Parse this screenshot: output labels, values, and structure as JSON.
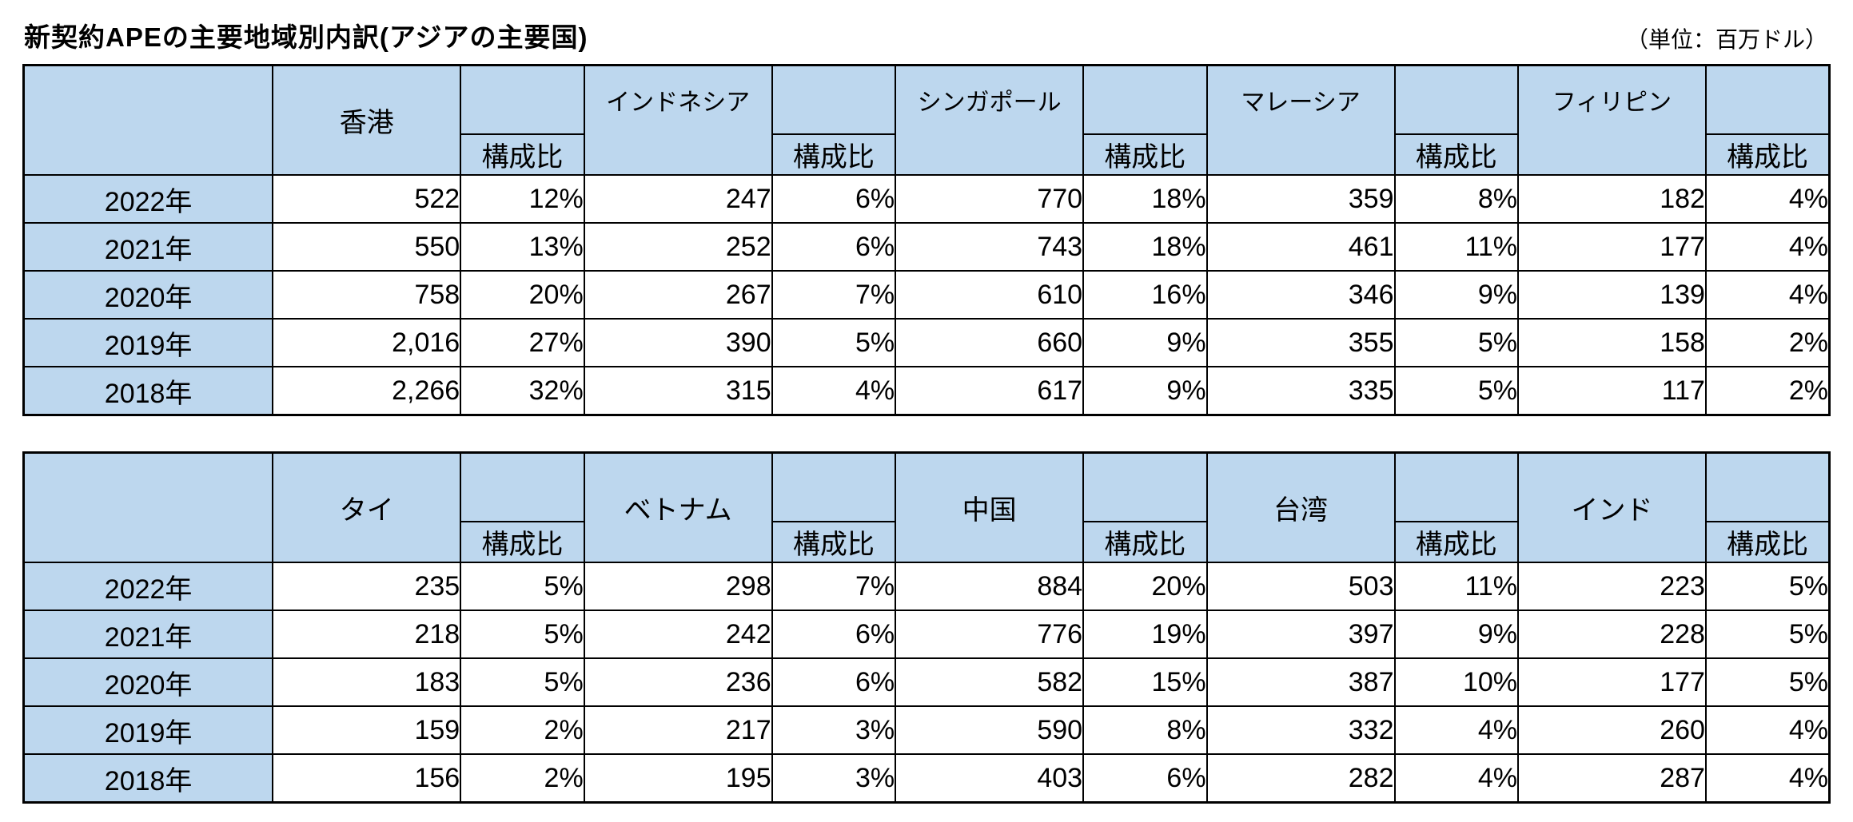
{
  "page": {
    "title": "新契約APEの主要地域別内訳(アジアの主要国)",
    "unit_label": "（単位：百万ドル）"
  },
  "ratio_header": "構成比",
  "colors": {
    "header_fill": "#BDD7EE",
    "border": "#000000"
  },
  "tables": [
    {
      "name": "asia-major-countries-table-1",
      "countries": [
        "香港",
        "インドネシア",
        "シンガポール",
        "マレーシア",
        "フィリピン"
      ],
      "rows": [
        {
          "year": "2022年",
          "values": [
            "522",
            "12%",
            "247",
            "6%",
            "770",
            "18%",
            "359",
            "8%",
            "182",
            "4%"
          ]
        },
        {
          "year": "2021年",
          "values": [
            "550",
            "13%",
            "252",
            "6%",
            "743",
            "18%",
            "461",
            "11%",
            "177",
            "4%"
          ]
        },
        {
          "year": "2020年",
          "values": [
            "758",
            "20%",
            "267",
            "7%",
            "610",
            "16%",
            "346",
            "9%",
            "139",
            "4%"
          ]
        },
        {
          "year": "2019年",
          "values": [
            "2,016",
            "27%",
            "390",
            "5%",
            "660",
            "9%",
            "355",
            "5%",
            "158",
            "2%"
          ]
        },
        {
          "year": "2018年",
          "values": [
            "2,266",
            "32%",
            "315",
            "4%",
            "617",
            "9%",
            "335",
            "5%",
            "117",
            "2%"
          ]
        }
      ]
    },
    {
      "name": "asia-major-countries-table-2",
      "countries": [
        "タイ",
        "ベトナム",
        "中国",
        "台湾",
        "インド"
      ],
      "rows": [
        {
          "year": "2022年",
          "values": [
            "235",
            "5%",
            "298",
            "7%",
            "884",
            "20%",
            "503",
            "11%",
            "223",
            "5%"
          ]
        },
        {
          "year": "2021年",
          "values": [
            "218",
            "5%",
            "242",
            "6%",
            "776",
            "19%",
            "397",
            "9%",
            "228",
            "5%"
          ]
        },
        {
          "year": "2020年",
          "values": [
            "183",
            "5%",
            "236",
            "6%",
            "582",
            "15%",
            "387",
            "10%",
            "177",
            "5%"
          ]
        },
        {
          "year": "2019年",
          "values": [
            "159",
            "2%",
            "217",
            "3%",
            "590",
            "8%",
            "332",
            "4%",
            "260",
            "4%"
          ]
        },
        {
          "year": "2018年",
          "values": [
            "156",
            "2%",
            "195",
            "3%",
            "403",
            "6%",
            "282",
            "4%",
            "287",
            "4%"
          ]
        }
      ]
    }
  ]
}
